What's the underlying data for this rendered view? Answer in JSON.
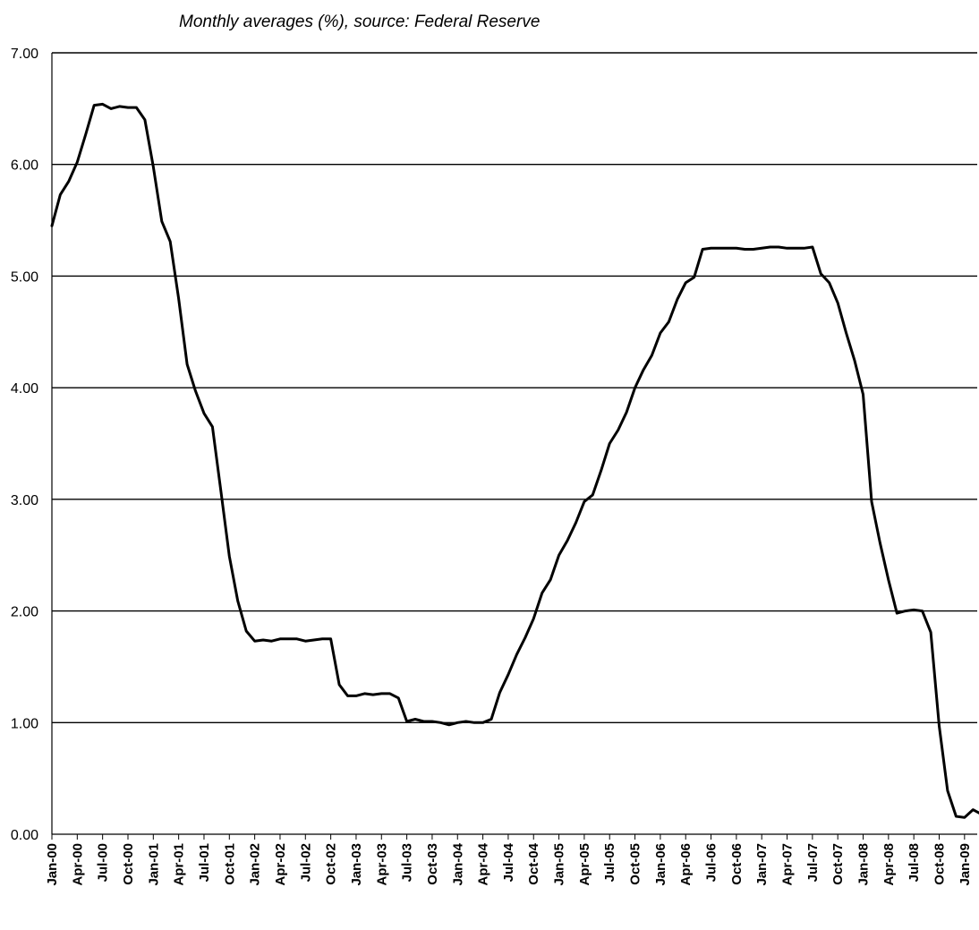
{
  "chart_data": {
    "type": "line",
    "title": "",
    "subtitle": "Monthly averages (%), source: Federal Reserve",
    "xlabel": "",
    "ylabel": "",
    "ylim": [
      0,
      7
    ],
    "yticks": [
      "0.00",
      "1.00",
      "2.00",
      "3.00",
      "4.00",
      "5.00",
      "6.00",
      "7.00"
    ],
    "grid": true,
    "legend": "none",
    "x_tick_labels": [
      "Jan-00",
      "Apr-00",
      "Jul-00",
      "Oct-00",
      "Jan-01",
      "Apr-01",
      "Jul-01",
      "Oct-01",
      "Jan-02",
      "Apr-02",
      "Jul-02",
      "Oct-02",
      "Jan-03",
      "Apr-03",
      "Jul-03",
      "Oct-03",
      "Jan-04",
      "Apr-04",
      "Jul-04",
      "Oct-04",
      "Jan-05",
      "Apr-05",
      "Jul-05",
      "Oct-05",
      "Jan-06",
      "Apr-06",
      "Jul-06",
      "Oct-06",
      "Jan-07",
      "Apr-07",
      "Jul-07",
      "Oct-07",
      "Jan-08",
      "Apr-08",
      "Jul-08",
      "Oct-08",
      "Jan-09"
    ],
    "x": [
      "Jan-00",
      "Feb-00",
      "Mar-00",
      "Apr-00",
      "May-00",
      "Jun-00",
      "Jul-00",
      "Aug-00",
      "Sep-00",
      "Oct-00",
      "Nov-00",
      "Dec-00",
      "Jan-01",
      "Feb-01",
      "Mar-01",
      "Apr-01",
      "May-01",
      "Jun-01",
      "Jul-01",
      "Aug-01",
      "Sep-01",
      "Oct-01",
      "Nov-01",
      "Dec-01",
      "Jan-02",
      "Feb-02",
      "Mar-02",
      "Apr-02",
      "May-02",
      "Jun-02",
      "Jul-02",
      "Aug-02",
      "Sep-02",
      "Oct-02",
      "Nov-02",
      "Dec-02",
      "Jan-03",
      "Feb-03",
      "Mar-03",
      "Apr-03",
      "May-03",
      "Jun-03",
      "Jul-03",
      "Aug-03",
      "Sep-03",
      "Oct-03",
      "Nov-03",
      "Dec-03",
      "Jan-04",
      "Feb-04",
      "Mar-04",
      "Apr-04",
      "May-04",
      "Jun-04",
      "Jul-04",
      "Aug-04",
      "Sep-04",
      "Oct-04",
      "Nov-04",
      "Dec-04",
      "Jan-05",
      "Feb-05",
      "Mar-05",
      "Apr-05",
      "May-05",
      "Jun-05",
      "Jul-05",
      "Aug-05",
      "Sep-05",
      "Oct-05",
      "Nov-05",
      "Dec-05",
      "Jan-06",
      "Feb-06",
      "Mar-06",
      "Apr-06",
      "May-06",
      "Jun-06",
      "Jul-06",
      "Aug-06",
      "Sep-06",
      "Oct-06",
      "Nov-06",
      "Dec-06",
      "Jan-07",
      "Feb-07",
      "Mar-07",
      "Apr-07",
      "May-07",
      "Jun-07",
      "Jul-07",
      "Aug-07",
      "Sep-07",
      "Oct-07",
      "Nov-07",
      "Dec-07",
      "Jan-08",
      "Feb-08",
      "Mar-08",
      "Apr-08",
      "May-08",
      "Jun-08",
      "Jul-08",
      "Aug-08",
      "Sep-08",
      "Oct-08",
      "Nov-08",
      "Dec-08",
      "Jan-09",
      "Feb-09",
      "Mar-09"
    ],
    "series": [
      {
        "values": [
          5.45,
          5.73,
          5.85,
          6.02,
          6.27,
          6.53,
          6.54,
          6.5,
          6.52,
          6.51,
          6.51,
          6.4,
          5.98,
          5.49,
          5.31,
          4.8,
          4.21,
          3.97,
          3.77,
          3.65,
          3.07,
          2.49,
          2.09,
          1.82,
          1.73,
          1.74,
          1.73,
          1.75,
          1.75,
          1.75,
          1.73,
          1.74,
          1.75,
          1.75,
          1.34,
          1.24,
          1.24,
          1.26,
          1.25,
          1.26,
          1.26,
          1.22,
          1.01,
          1.03,
          1.01,
          1.01,
          1.0,
          0.98,
          1.0,
          1.01,
          1.0,
          1.0,
          1.03,
          1.27,
          1.43,
          1.61,
          1.76,
          1.93,
          2.16,
          2.28,
          2.5,
          2.63,
          2.79,
          2.98,
          3.04,
          3.26,
          3.5,
          3.62,
          3.78,
          4.0,
          4.16,
          4.29,
          4.49,
          4.59,
          4.79,
          4.94,
          4.99,
          5.24,
          5.25,
          5.25,
          5.25,
          5.25,
          5.24,
          5.24,
          5.25,
          5.26,
          5.26,
          5.25,
          5.25,
          5.25,
          5.26,
          5.02,
          4.94,
          4.76,
          4.49,
          4.24,
          3.94,
          2.98,
          2.61,
          2.28,
          1.98,
          2.0,
          2.01,
          2.0,
          1.81,
          0.97,
          0.39,
          0.16,
          0.15,
          0.22,
          0.18
        ]
      }
    ]
  }
}
